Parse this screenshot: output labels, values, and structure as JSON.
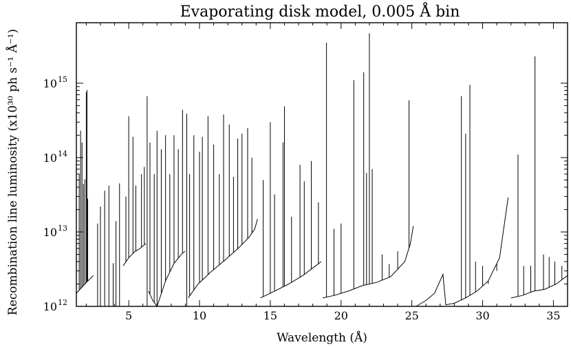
{
  "chart_data": {
    "type": "line",
    "title": "Evaporating disk model, 0.005 Å bin",
    "xlabel": "Wavelength (Å)",
    "ylabel": "Recombination line luminosity (x10³⁰ ph s⁻¹ Å⁻¹)",
    "x_scale": "linear",
    "y_scale": "log",
    "xlim": [
      1.3,
      36.0
    ],
    "ylim": [
      1000000000000.0,
      6500000000000000.0
    ],
    "x_ticks": [
      5,
      10,
      15,
      20,
      25,
      30,
      35
    ],
    "x_tick_labels": [
      "5",
      "10",
      "15",
      "20",
      "25",
      "30",
      "35"
    ],
    "y_ticks": [
      1000000000000.0,
      10000000000000.0,
      100000000000000.0,
      1000000000000000.0
    ],
    "y_tick_labels": [
      {
        "base": "10",
        "exp": "12"
      },
      {
        "base": "10",
        "exp": "13"
      },
      {
        "base": "10",
        "exp": "14"
      },
      {
        "base": "10",
        "exp": "15"
      }
    ],
    "grid": false,
    "legend": "none",
    "line_color": "#000000",
    "series": [
      {
        "continuum": [
          [
            [
              1.3,
              1500000000000.0
            ],
            [
              1.9,
              2000000000000.0
            ],
            [
              2.5,
              2600000000000.0
            ]
          ],
          [
            [
              4.6,
              3500000000000.0
            ],
            [
              5.0,
              4500000000000.0
            ],
            [
              5.4,
              5400000000000.0
            ],
            [
              5.8,
              6000000000000.0
            ],
            [
              6.2,
              7000000000000.0
            ]
          ],
          [
            [
              6.4,
              1600000000000.0
            ],
            [
              6.7,
              1200000000000.0
            ],
            [
              7.0,
              1000000000000.0
            ],
            [
              7.6,
              2200000000000.0
            ],
            [
              8.2,
              3800000000000.0
            ],
            [
              8.8,
              5200000000000.0
            ],
            [
              9.0,
              5500000000000.0
            ]
          ],
          [
            [
              9.2,
              1300000000000.0
            ],
            [
              9.9,
              2000000000000.0
            ],
            [
              10.8,
              2900000000000.0
            ],
            [
              11.8,
              4200000000000.0
            ],
            [
              12.8,
              6200000000000.0
            ],
            [
              13.5,
              8500000000000.0
            ],
            [
              13.9,
              11000000000000.0
            ],
            [
              14.1,
              15000000000000.0
            ]
          ],
          [
            [
              14.3,
              1300000000000.0
            ],
            [
              15.3,
              1600000000000.0
            ],
            [
              16.3,
              2000000000000.0
            ],
            [
              17.3,
              2600000000000.0
            ],
            [
              18.2,
              3500000000000.0
            ],
            [
              18.6,
              4000000000000.0
            ]
          ],
          [
            [
              18.7,
              1300000000000.0
            ],
            [
              19.5,
              1400000000000.0
            ],
            [
              20.5,
              1600000000000.0
            ],
            [
              21.5,
              1900000000000.0
            ],
            [
              22.5,
              2100000000000.0
            ],
            [
              23.5,
              2500000000000.0
            ],
            [
              24.5,
              4000000000000.0
            ],
            [
              24.9,
              7000000000000.0
            ],
            [
              25.1,
              12000000000000.0
            ]
          ],
          [
            [
              25.3,
              1000000000000.0
            ],
            [
              26.0,
              1200000000000.0
            ],
            [
              26.6,
              1500000000000.0
            ],
            [
              27.2,
              2700000000000.0
            ],
            [
              27.4,
              1050000000000.0
            ],
            [
              28.0,
              1100000000000.0
            ],
            [
              28.8,
              1300000000000.0
            ],
            [
              29.6,
              1600000000000.0
            ],
            [
              30.4,
              2200000000000.0
            ],
            [
              31.2,
              4500000000000.0
            ],
            [
              31.8,
              29000000000000.0
            ]
          ],
          [
            [
              32.0,
              1300000000000.0
            ],
            [
              32.8,
              1400000000000.0
            ],
            [
              33.6,
              1600000000000.0
            ],
            [
              34.4,
              1700000000000.0
            ],
            [
              35.2,
              2000000000000.0
            ],
            [
              36.0,
              2600000000000.0
            ]
          ]
        ],
        "lines": [
          [
            1.5,
            60000000000000.0
          ],
          [
            1.6,
            230000000000000.0
          ],
          [
            1.7,
            160000000000000.0
          ],
          [
            1.8,
            44000000000000.0
          ],
          [
            1.9,
            51000000000000.0
          ],
          [
            2.0,
            760000000000000.0
          ],
          [
            2.05,
            810000000000000.0
          ],
          [
            2.1,
            28000000000000.0
          ],
          [
            2.8,
            13000000000000.0
          ],
          [
            3.0,
            22000000000000.0
          ],
          [
            3.3,
            36000000000000.0
          ],
          [
            3.6,
            42000000000000.0
          ],
          [
            3.9,
            3800000000000.0
          ],
          [
            4.1,
            14000000000000.0
          ],
          [
            4.35,
            45000000000000.0
          ],
          [
            4.8,
            30000000000000.0
          ],
          [
            5.0,
            360000000000000.0
          ],
          [
            5.3,
            190000000000000.0
          ],
          [
            5.5,
            42000000000000.0
          ],
          [
            5.9,
            60000000000000.0
          ],
          [
            6.1,
            75000000000000.0
          ],
          [
            6.3,
            670000000000000.0
          ],
          [
            6.5,
            160000000000000.0
          ],
          [
            6.8,
            60000000000000.0
          ],
          [
            7.0,
            230000000000000.0
          ],
          [
            7.3,
            130000000000000.0
          ],
          [
            7.6,
            200000000000000.0
          ],
          [
            7.9,
            60000000000000.0
          ],
          [
            8.2,
            200000000000000.0
          ],
          [
            8.5,
            130000000000000.0
          ],
          [
            8.8,
            440000000000000.0
          ],
          [
            9.1,
            390000000000000.0
          ],
          [
            9.3,
            60000000000000.0
          ],
          [
            9.6,
            200000000000000.0
          ],
          [
            10.0,
            120000000000000.0
          ],
          [
            10.2,
            190000000000000.0
          ],
          [
            10.6,
            360000000000000.0
          ],
          [
            11.0,
            150000000000000.0
          ],
          [
            11.4,
            60000000000000.0
          ],
          [
            11.7,
            380000000000000.0
          ],
          [
            12.1,
            280000000000000.0
          ],
          [
            12.4,
            55000000000000.0
          ],
          [
            12.7,
            180000000000000.0
          ],
          [
            13.0,
            210000000000000.0
          ],
          [
            13.4,
            250000000000000.0
          ],
          [
            13.7,
            100000000000000.0
          ],
          [
            14.5,
            50000000000000.0
          ],
          [
            15.0,
            300000000000000.0
          ],
          [
            15.3,
            32000000000000.0
          ],
          [
            15.9,
            160000000000000.0
          ],
          [
            16.0,
            490000000000000.0
          ],
          [
            16.5,
            16000000000000.0
          ],
          [
            17.1,
            80000000000000.0
          ],
          [
            17.4,
            48000000000000.0
          ],
          [
            17.9,
            90000000000000.0
          ],
          [
            18.4,
            25000000000000.0
          ],
          [
            18.97,
            3500000000000000.0
          ],
          [
            19.5,
            11000000000000.0
          ],
          [
            20.0,
            13000000000000.0
          ],
          [
            20.9,
            1100000000000000.0
          ],
          [
            21.6,
            1400000000000000.0
          ],
          [
            21.8,
            62000000000000.0
          ],
          [
            22.0,
            4700000000000000.0
          ],
          [
            22.2,
            70000000000000.0
          ],
          [
            22.9,
            5000000000000.0
          ],
          [
            23.4,
            3700000000000.0
          ],
          [
            24.0,
            5500000000000.0
          ],
          [
            24.8,
            590000000000000.0
          ],
          [
            28.5,
            670000000000000.0
          ],
          [
            28.8,
            210000000000000.0
          ],
          [
            29.1,
            950000000000000.0
          ],
          [
            29.5,
            4000000000000.0
          ],
          [
            30.0,
            3500000000000.0
          ],
          [
            30.4,
            2000000000000.0
          ],
          [
            31.0,
            3000000000000.0
          ],
          [
            32.5,
            110000000000000.0
          ],
          [
            32.9,
            3500000000000.0
          ],
          [
            33.4,
            3500000000000.0
          ],
          [
            33.7,
            2300000000000000.0
          ],
          [
            34.3,
            5000000000000.0
          ],
          [
            34.7,
            4600000000000.0
          ],
          [
            35.1,
            4000000000000.0
          ],
          [
            35.6,
            3500000000000.0
          ]
        ]
      }
    ]
  }
}
